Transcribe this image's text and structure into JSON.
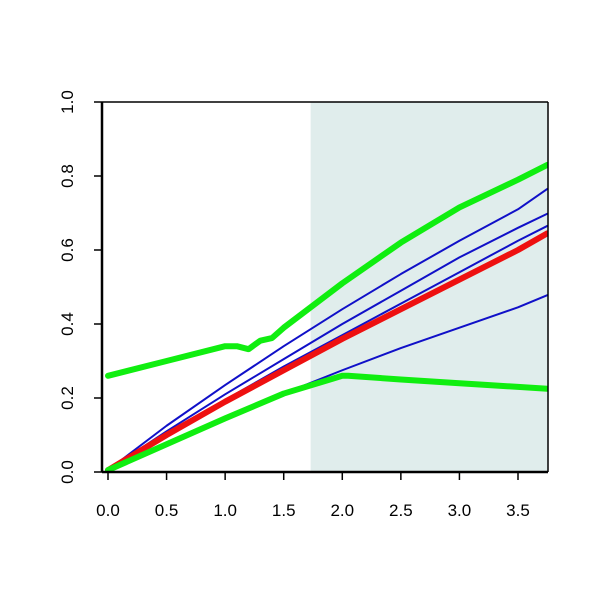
{
  "chart_data": {
    "type": "line",
    "title": "",
    "xlabel": "",
    "ylabel": "",
    "xlim": [
      0.0,
      3.75
    ],
    "ylim": [
      0.0,
      1.0
    ],
    "x_ticks": [
      0.0,
      0.5,
      1.0,
      1.5,
      2.0,
      2.5,
      3.0,
      3.5
    ],
    "x_tick_labels": [
      "0.0",
      "0.5",
      "1.0",
      "1.5",
      "2.0",
      "2.5",
      "3.0",
      "3.5"
    ],
    "y_ticks": [
      0.0,
      0.2,
      0.4,
      0.6,
      0.8,
      1.0
    ],
    "y_tick_labels": [
      "0.0",
      "0.2",
      "0.4",
      "0.6",
      "0.8",
      "1.0"
    ],
    "grid": false,
    "legend": "none",
    "shaded_region": {
      "x_start": 1.73,
      "x_end": 3.75,
      "color": "#e0edec"
    },
    "series": [
      {
        "color": "#1010c8",
        "style": "thin",
        "x": [
          0.0,
          0.5,
          1.0,
          1.5,
          2.0,
          2.5,
          3.0,
          3.5,
          3.75
        ],
        "y": [
          0.005,
          0.075,
          0.145,
          0.212,
          0.275,
          0.335,
          0.39,
          0.445,
          0.478
        ]
      },
      {
        "color": "#1010c8",
        "style": "thin",
        "x": [
          0.0,
          0.5,
          1.0,
          1.5,
          2.0,
          2.5,
          3.0,
          3.5,
          3.75
        ],
        "y": [
          0.005,
          0.1,
          0.195,
          0.285,
          0.37,
          0.455,
          0.54,
          0.625,
          0.665
        ]
      },
      {
        "color": "#1010c8",
        "style": "thin",
        "x": [
          0.0,
          0.5,
          1.0,
          1.5,
          2.0,
          2.5,
          3.0,
          3.5,
          3.75
        ],
        "y": [
          0.005,
          0.11,
          0.21,
          0.305,
          0.4,
          0.49,
          0.58,
          0.66,
          0.698
        ]
      },
      {
        "color": "#1010c8",
        "style": "thin",
        "x": [
          0.0,
          0.5,
          1.0,
          1.5,
          2.0,
          2.5,
          3.0,
          3.5,
          3.75
        ],
        "y": [
          0.005,
          0.125,
          0.235,
          0.34,
          0.44,
          0.535,
          0.625,
          0.71,
          0.765
        ]
      },
      {
        "color": "#ee1010",
        "style": "thick",
        "x": [
          0.0,
          0.5,
          1.0,
          1.5,
          2.0,
          2.5,
          3.0,
          3.5,
          3.75
        ],
        "y": [
          0.005,
          0.1,
          0.19,
          0.275,
          0.36,
          0.44,
          0.52,
          0.6,
          0.645
        ]
      },
      {
        "color": "#10ee10",
        "style": "thick",
        "x": [
          0.0,
          0.5,
          1.0,
          1.1,
          1.2,
          1.3,
          1.4,
          1.5,
          2.0,
          2.5,
          3.0,
          3.5,
          3.75
        ],
        "y": [
          0.26,
          0.3,
          0.34,
          0.34,
          0.332,
          0.355,
          0.362,
          0.39,
          0.51,
          0.62,
          0.715,
          0.79,
          0.83
        ]
      },
      {
        "color": "#10ee10",
        "style": "thick",
        "x": [
          0.0,
          0.5,
          1.0,
          1.5,
          2.0,
          2.05,
          2.5,
          3.0,
          3.5,
          3.75
        ],
        "y": [
          0.005,
          0.075,
          0.145,
          0.212,
          0.26,
          0.26,
          0.25,
          0.24,
          0.23,
          0.225
        ]
      }
    ]
  }
}
